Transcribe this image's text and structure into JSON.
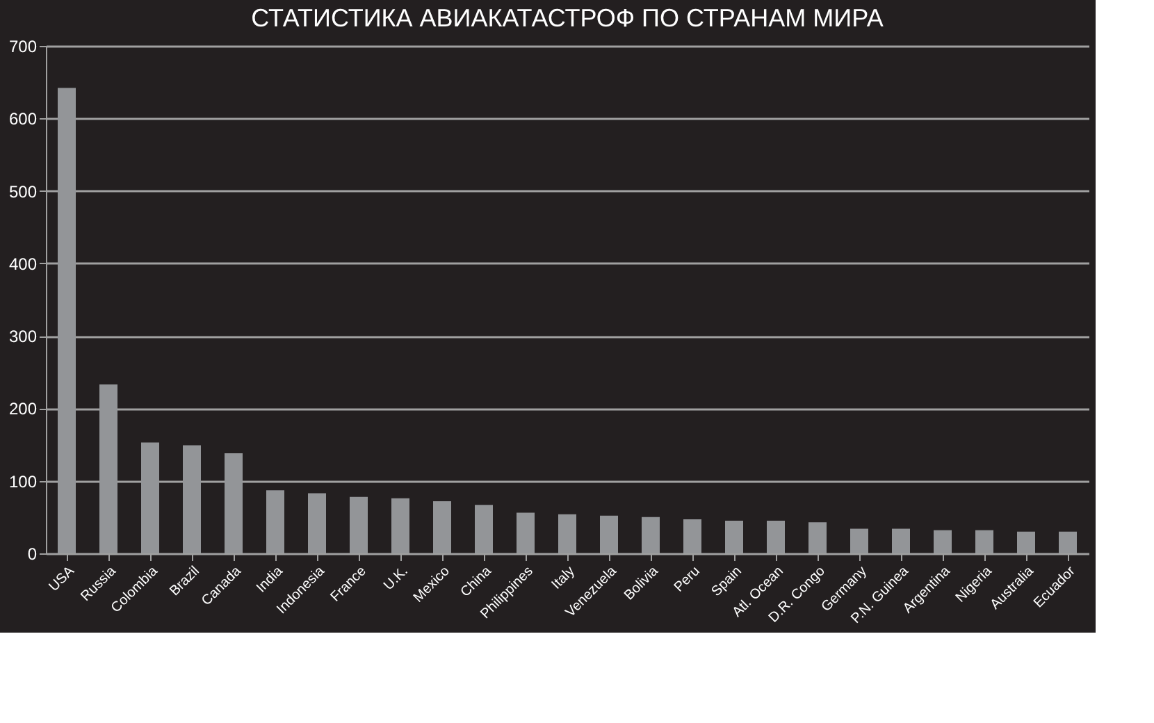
{
  "chart_data": {
    "type": "bar",
    "title": "СТАТИСТИКА АВИАКАТАСТРОФ ПО СТРАНАМ МИРА",
    "categories": [
      "USA",
      "Russia",
      "Colombia",
      "Brazil",
      "Canada",
      "India",
      "Indonesia",
      "France",
      "U.K.",
      "Mexico",
      "China",
      "Philippines",
      "Italy",
      "Venezuela",
      "Bolivia",
      "Peru",
      "Spain",
      "Atl. Ocean",
      "D.R. Congo",
      "Germany",
      "P.N. Guinea",
      "Argentina",
      "Nigeria",
      "Australia",
      "Ecuador"
    ],
    "values": [
      642,
      233,
      153,
      149,
      138,
      87,
      83,
      78,
      76,
      72,
      67,
      56,
      54,
      52,
      50,
      47,
      45,
      45,
      43,
      34,
      34,
      32,
      32,
      30,
      30
    ],
    "color": "#939598",
    "ylim": [
      0,
      700
    ],
    "yticks": [
      0,
      100,
      200,
      300,
      400,
      500,
      600,
      700
    ],
    "grid": "y"
  }
}
